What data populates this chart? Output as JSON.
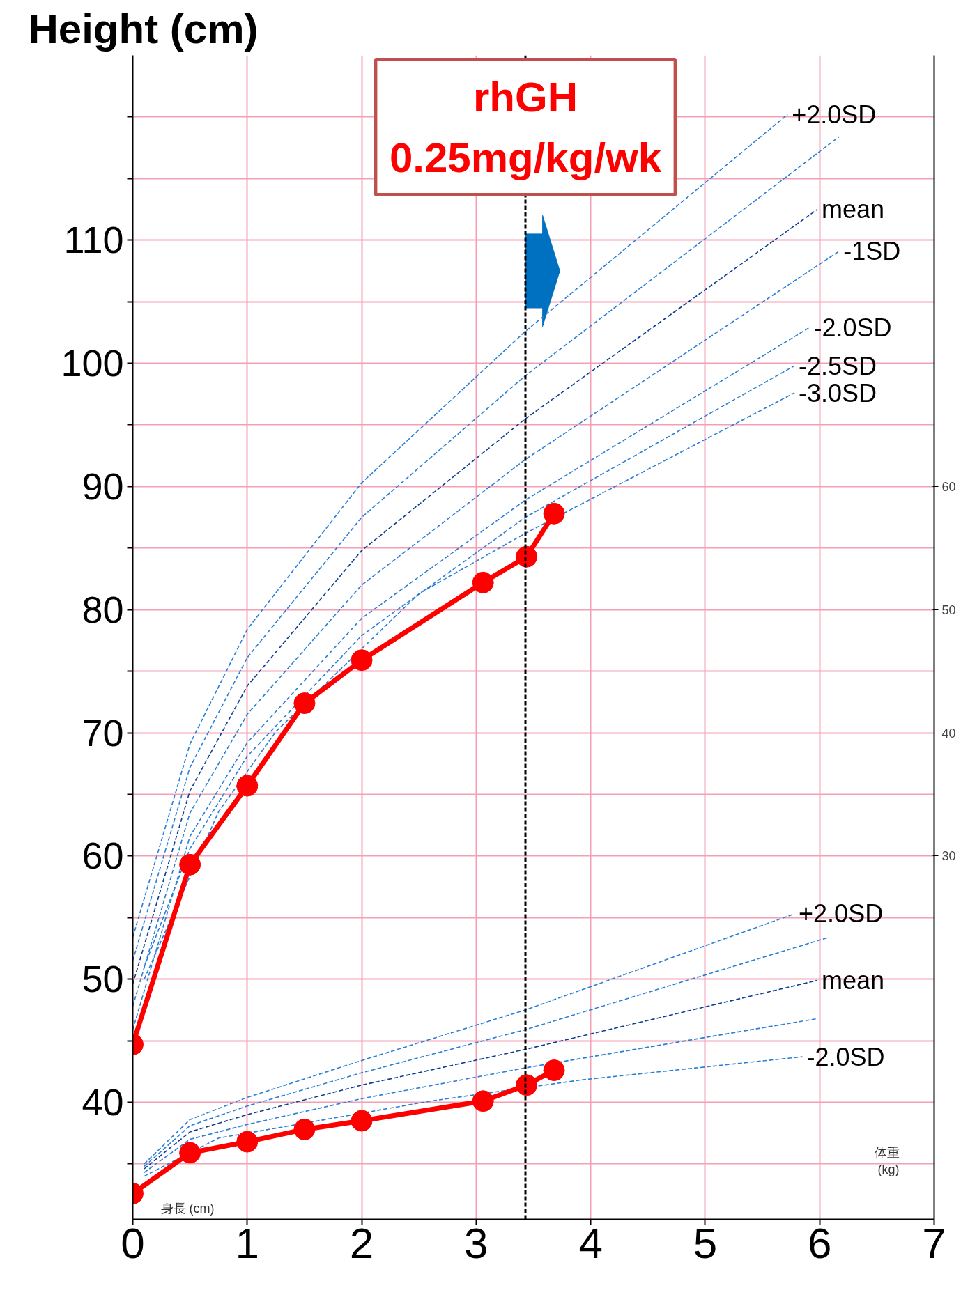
{
  "chart_data": {
    "type": "line",
    "ylabel": "Height (cm)",
    "xlim": [
      0,
      7
    ],
    "xticks": [
      0,
      1,
      2,
      3,
      4,
      5,
      6,
      7
    ],
    "ylim": [
      30.5,
      125
    ],
    "yticks": [
      {
        "value": 35,
        "label": null
      },
      40,
      {
        "value": 45,
        "label": null
      },
      50,
      {
        "value": 55,
        "label": null
      },
      60,
      {
        "value": 65,
        "label": null
      },
      70,
      {
        "value": 75,
        "label": null
      },
      80,
      {
        "value": 85,
        "label": null
      },
      90,
      {
        "value": 95,
        "label": null
      },
      100,
      {
        "value": 105,
        "label": null
      },
      110,
      {
        "value": 115,
        "label": null
      },
      {
        "value": 120,
        "label": null
      }
    ],
    "y2lim": [
      0.5,
      95
    ],
    "y2ticks": [
      30,
      40,
      50,
      60
    ],
    "grid": true,
    "line_style": "dashed",
    "marker": "none",
    "ref_lines": [
      {
        "axis": "x",
        "value": 3.43,
        "label": "rhGH\n0.25mg/kg/wk",
        "color": "#000000",
        "line_style": "dashed"
      }
    ],
    "annotations": [
      "身長 (cm)",
      "体重 (kg)"
    ],
    "series": [
      {
        "name": "+2.0SD",
        "color": "#2a7fd4",
        "x": [
          0,
          0.5,
          1,
          2,
          3.43,
          5.72
        ],
        "values": [
          53.4,
          69.1,
          78.4,
          90.3,
          102.6,
          120.2
        ]
      },
      {
        "color": "#2a7fd4",
        "x": [
          0,
          0.5,
          1,
          2,
          3.43,
          6.17
        ],
        "values": [
          51.5,
          67.2,
          76.1,
          87.5,
          99,
          118.4
        ]
      },
      {
        "name": "mean",
        "color": "#0b3d91",
        "x": [
          0,
          0.5,
          1,
          2,
          3.43,
          5.98
        ],
        "values": [
          49.6,
          65.3,
          73.8,
          84.8,
          95.5,
          112.5
        ]
      },
      {
        "name": "-1SD",
        "color": "#2a7fd4",
        "x": [
          0,
          0.5,
          1,
          2,
          3.43,
          6.17
        ],
        "values": [
          47.8,
          63.5,
          71.5,
          82,
          92.2,
          109.1
        ]
      },
      {
        "name": "-2.0SD",
        "color": "#2a7fd4",
        "x": [
          0,
          0.5,
          1,
          2,
          3.43,
          5.91
        ],
        "values": [
          45.9,
          61.6,
          69.2,
          79.3,
          88.9,
          102.9
        ]
      },
      {
        "name": "-2.5SD",
        "color": "#2a7fd4",
        "x": [
          0.1,
          0.5,
          1,
          2,
          3.43,
          5.78
        ],
        "values": [
          51,
          60.6,
          68.1,
          77.9,
          87.5,
          99.8
        ]
      },
      {
        "name": "-3.0SD",
        "color": "#2a7fd4",
        "x": [
          0.1,
          0.75,
          1.25,
          2.5,
          3.43,
          5.78
        ],
        "values": [
          50,
          63.6,
          70.1,
          81.3,
          86.2,
          97.6
        ]
      },
      {
        "name": "+2.0SD",
        "color": "#2a7fd4",
        "x": [
          0.1,
          0.5,
          1,
          2,
          3.43,
          5.78
        ],
        "values": [
          35,
          38.6,
          40.4,
          43.4,
          47.5,
          55.3
        ]
      },
      {
        "color": "#2a7fd4",
        "x": [
          0.1,
          0.5,
          1,
          2,
          3.43,
          6.08
        ],
        "values": [
          34.8,
          38.1,
          39.7,
          42.4,
          45.9,
          53.4
        ]
      },
      {
        "name": "mean",
        "color": "#0b3d91",
        "x": [
          0.1,
          0.5,
          1,
          2,
          3.43,
          5.98
        ],
        "values": [
          34.6,
          37.6,
          39,
          41.4,
          44.3,
          49.9
        ]
      },
      {
        "color": "#2a7fd4",
        "x": [
          0.1,
          0.5,
          1,
          2,
          3.43,
          5.98
        ],
        "values": [
          34.3,
          37,
          38.2,
          40.3,
          42.8,
          46.8
        ]
      },
      {
        "name": "-2.0SD",
        "color": "#2a7fd4",
        "x": [
          0.1,
          0.75,
          1.25,
          2.6,
          3.9,
          5.85
        ],
        "values": [
          34,
          37.1,
          37.9,
          40.1,
          41.8,
          43.7
        ]
      },
      {
        "color": "#ff0000",
        "line_style": "solid",
        "marker": "circle",
        "x": [
          0,
          0.5,
          1,
          1.5,
          2,
          3.06,
          3.44,
          3.68
        ],
        "values": [
          44.7,
          59.3,
          65.7,
          72.4,
          75.9,
          82.2,
          84.3,
          87.8
        ]
      },
      {
        "color": "#ff0000",
        "line_style": "solid",
        "marker": "circle",
        "x": [
          0,
          0.5,
          1,
          1.5,
          2,
          3.06,
          3.44,
          3.68
        ],
        "values": [
          32.6,
          35.9,
          36.8,
          37.8,
          38.5,
          40.1,
          41.4,
          42.6
        ]
      }
    ]
  }
}
